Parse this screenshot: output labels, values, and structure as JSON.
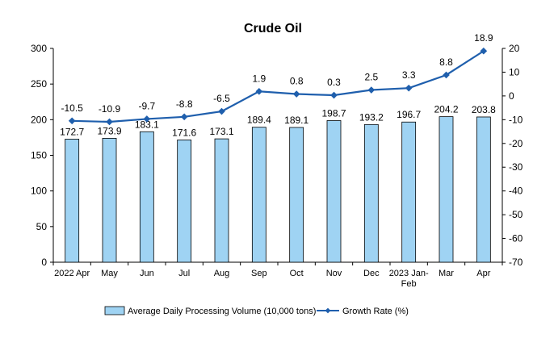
{
  "chart_data": {
    "type": "bar+line",
    "title": "Crude Oil",
    "categories": [
      "2022 Apr",
      "May",
      "Jun",
      "Jul",
      "Aug",
      "Sep",
      "Oct",
      "Nov",
      "Dec",
      "2023 Jan-Feb",
      "Mar",
      "Apr"
    ],
    "category_lines": [
      [
        "2022 Apr"
      ],
      [
        "May"
      ],
      [
        "Jun"
      ],
      [
        "Jul"
      ],
      [
        "Aug"
      ],
      [
        "Sep"
      ],
      [
        "Oct"
      ],
      [
        "Nov"
      ],
      [
        "Dec"
      ],
      [
        "2023 Jan-",
        "Feb"
      ],
      [
        "Mar"
      ],
      [
        "Apr"
      ]
    ],
    "series": [
      {
        "name": "Average Daily Processing Volume (10,000 tons)",
        "type": "bar",
        "axis": "left",
        "values": [
          172.7,
          173.9,
          183.1,
          171.6,
          173.1,
          189.4,
          189.1,
          198.7,
          193.2,
          196.7,
          204.2,
          203.8
        ],
        "labels": [
          "172.7",
          "173.9",
          "183.1",
          "171.6",
          "173.1",
          "189.4",
          "189.1",
          "198.7",
          "193.2",
          "196.7",
          "204.2",
          "203.8"
        ],
        "color": "#9fd3f3",
        "stroke": "#000000"
      },
      {
        "name": "Growth Rate (%)",
        "type": "line",
        "axis": "right",
        "values": [
          -10.5,
          -10.9,
          -9.7,
          -8.8,
          -6.5,
          1.9,
          0.8,
          0.3,
          2.5,
          3.3,
          8.8,
          18.9
        ],
        "labels": [
          "-10.5",
          "-10.9",
          "-9.7",
          "-8.8",
          "-6.5",
          "1.9",
          "0.8",
          "0.3",
          "2.5",
          "3.3",
          "8.8",
          "18.9"
        ],
        "color": "#1f5fad",
        "marker": "diamond"
      }
    ],
    "y_left": {
      "lim": [
        0,
        300
      ],
      "ticks": [
        0,
        50,
        100,
        150,
        200,
        250,
        300
      ]
    },
    "y_right": {
      "lim": [
        -70,
        20
      ],
      "ticks": [
        -70,
        -60,
        -50,
        -40,
        -30,
        -20,
        -10,
        0,
        10,
        20
      ]
    },
    "grid": false,
    "legend_position": "bottom"
  }
}
